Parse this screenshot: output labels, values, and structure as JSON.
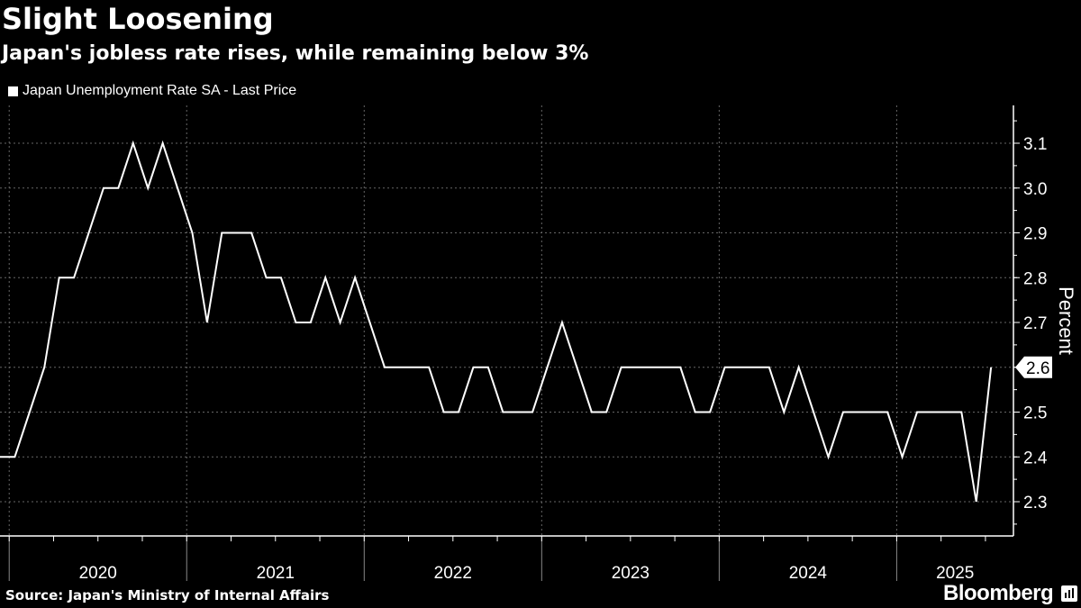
{
  "header": {
    "title": "Slight Loosening",
    "subtitle": "Japan's jobless rate rises, while remaining below 3%"
  },
  "legend": {
    "label": "Japan Unemployment Rate SA - Last Price"
  },
  "footer": {
    "source": "Source: Japan's Ministry of Internal Affairs",
    "brand": "Bloomberg"
  },
  "colors": {
    "background": "#000000",
    "line": "#ffffff",
    "grid": "#666666"
  },
  "chart_data": {
    "type": "line",
    "title": "Slight Loosening",
    "subtitle": "Japan's jobless rate rises, while remaining below 3%",
    "xlabel": "",
    "ylabel": "Percent",
    "ylim": [
      2.2,
      3.2
    ],
    "yticks": [
      2.3,
      2.4,
      2.5,
      2.6,
      2.7,
      2.8,
      2.9,
      3.0,
      3.1
    ],
    "ytick_labels": [
      "2.3",
      "2.4",
      "2.5",
      "2.6",
      "2.7",
      "2.8",
      "2.9",
      "3.0",
      "3.1"
    ],
    "x_start": "2019-12",
    "x_end": "2025-06",
    "year_labels": [
      "2020",
      "2021",
      "2022",
      "2023",
      "2024",
      "2025"
    ],
    "last_value_label": "2.6",
    "grid": true,
    "legend_position": "top-left",
    "series": [
      {
        "name": "Japan Unemployment Rate SA - Last Price",
        "values": [
          2.4,
          2.4,
          2.5,
          2.6,
          2.8,
          2.8,
          2.9,
          3.0,
          3.0,
          3.1,
          3.0,
          3.1,
          3.0,
          2.9,
          2.7,
          2.9,
          2.9,
          2.9,
          2.8,
          2.8,
          2.7,
          2.7,
          2.8,
          2.7,
          2.8,
          2.7,
          2.6,
          2.6,
          2.6,
          2.6,
          2.5,
          2.5,
          2.6,
          2.6,
          2.5,
          2.5,
          2.5,
          2.6,
          2.7,
          2.6,
          2.5,
          2.5,
          2.6,
          2.6,
          2.6,
          2.6,
          2.6,
          2.5,
          2.5,
          2.6,
          2.6,
          2.6,
          2.6,
          2.5,
          2.6,
          2.5,
          2.4,
          2.5,
          2.5,
          2.5,
          2.5,
          2.4,
          2.5,
          2.5,
          2.5,
          2.5,
          2.3,
          2.6
        ]
      }
    ]
  }
}
